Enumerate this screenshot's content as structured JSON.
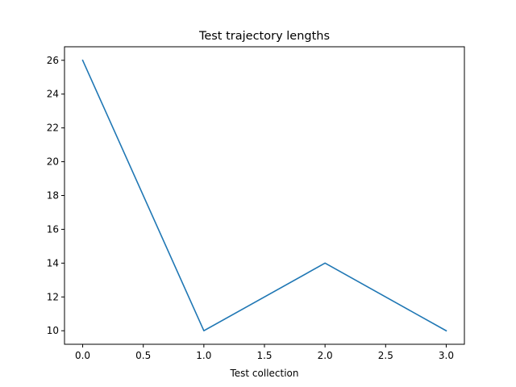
{
  "chart_data": {
    "type": "line",
    "title": "Test trajectory lengths",
    "xlabel": "Test collection",
    "ylabel": "",
    "xlim": [
      -0.15,
      3.15
    ],
    "ylim": [
      9.2,
      26.8
    ],
    "xticks": [
      0.0,
      0.5,
      1.0,
      1.5,
      2.0,
      2.5,
      3.0
    ],
    "xtick_labels": [
      "0.0",
      "0.5",
      "1.0",
      "1.5",
      "2.0",
      "2.5",
      "3.0"
    ],
    "yticks": [
      10,
      12,
      14,
      16,
      18,
      20,
      22,
      24,
      26
    ],
    "ytick_labels": [
      "10",
      "12",
      "14",
      "16",
      "18",
      "20",
      "22",
      "24",
      "26"
    ],
    "grid": false,
    "series": [
      {
        "color": "#1f77b4",
        "x": [
          0,
          1,
          2,
          3
        ],
        "values": [
          26,
          10,
          14,
          10
        ]
      }
    ]
  }
}
